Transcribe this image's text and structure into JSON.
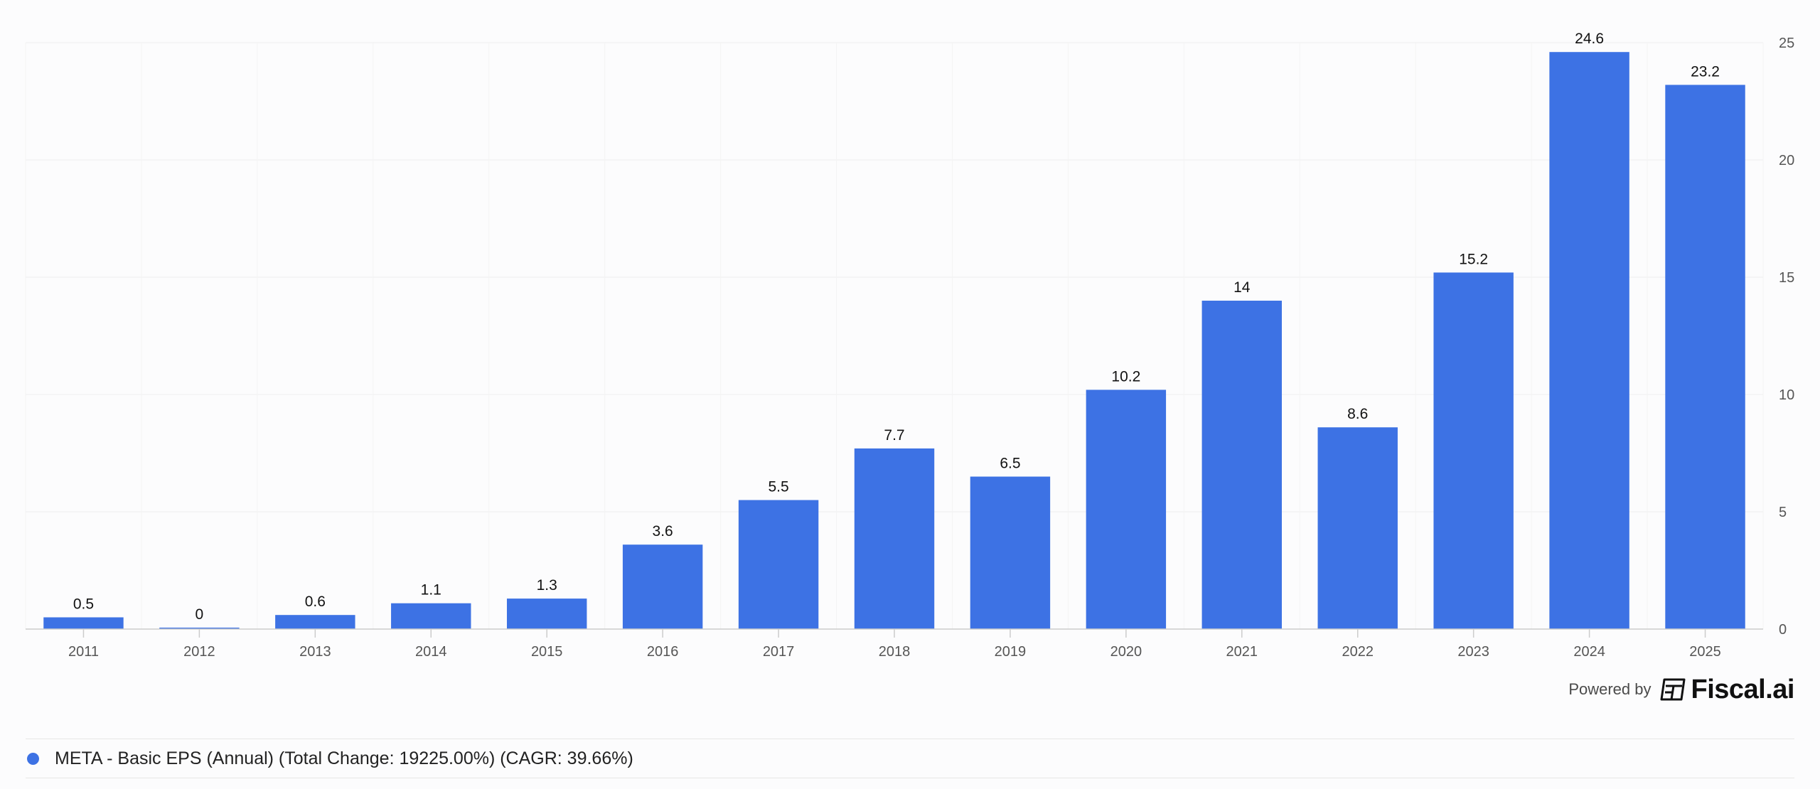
{
  "chart_data": {
    "type": "bar",
    "categories": [
      "2011",
      "2012",
      "2013",
      "2014",
      "2015",
      "2016",
      "2017",
      "2018",
      "2019",
      "2020",
      "2021",
      "2022",
      "2023",
      "2024",
      "2025"
    ],
    "series": [
      {
        "name": "META - Basic EPS (Annual) (Total Change: 19225.00%) (CAGR: 39.66%)",
        "values": [
          0.5,
          0,
          0.6,
          1.1,
          1.3,
          3.6,
          5.5,
          7.7,
          6.5,
          10.2,
          14,
          8.6,
          15.2,
          24.6,
          23.2
        ]
      }
    ],
    "data_labels": [
      "0.5",
      "0",
      "0.6",
      "1.1",
      "1.3",
      "3.6",
      "5.5",
      "7.7",
      "6.5",
      "10.2",
      "14",
      "8.6",
      "15.2",
      "24.6",
      "23.2"
    ],
    "ylim": [
      0,
      25
    ],
    "yticks": [
      0,
      5,
      10,
      15,
      20,
      25
    ],
    "ytick_labels": [
      "0",
      "5",
      "10",
      "15",
      "20",
      "25"
    ],
    "y_axis_side": "right",
    "grid": true,
    "legend_position": "bottom",
    "colors": {
      "bar": "#3d72e4",
      "grid": "#eeeeee",
      "axis": "#cccccc",
      "tick_text": "#555555",
      "label_text": "#111111"
    }
  },
  "footer": {
    "powered_by": "Powered by",
    "brand": "Fiscal.ai",
    "brand_icon": "fiscal-logo-icon"
  },
  "legend": {
    "label": "META - Basic EPS (Annual) (Total Change: 19225.00%) (CAGR: 39.66%)",
    "color": "#3d72e4"
  }
}
